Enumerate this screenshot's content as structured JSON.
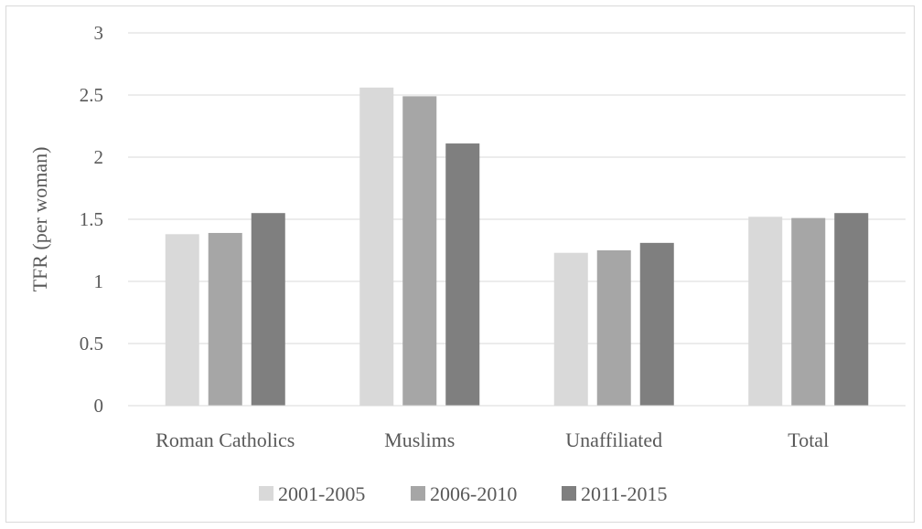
{
  "chart_data": {
    "type": "bar",
    "title": "",
    "xlabel": "",
    "ylabel": "TFR (per woman)",
    "categories": [
      "Roman Catholics",
      "Muslims",
      "Unaffiliated",
      "Total"
    ],
    "series": [
      {
        "name": "2001-2005",
        "color": "#d9d9d9",
        "values": [
          1.38,
          2.56,
          1.23,
          1.52
        ]
      },
      {
        "name": "2006-2010",
        "color": "#a6a6a6",
        "values": [
          1.39,
          2.49,
          1.25,
          1.51
        ]
      },
      {
        "name": "2011-2015",
        "color": "#7f7f7f",
        "values": [
          1.55,
          2.11,
          1.31,
          1.55
        ]
      }
    ],
    "ylim": [
      0,
      3
    ],
    "yticks": [
      "0",
      "0.5",
      "1",
      "1.5",
      "2",
      "2.5",
      "3"
    ],
    "grid": true,
    "legend_position": "bottom"
  }
}
